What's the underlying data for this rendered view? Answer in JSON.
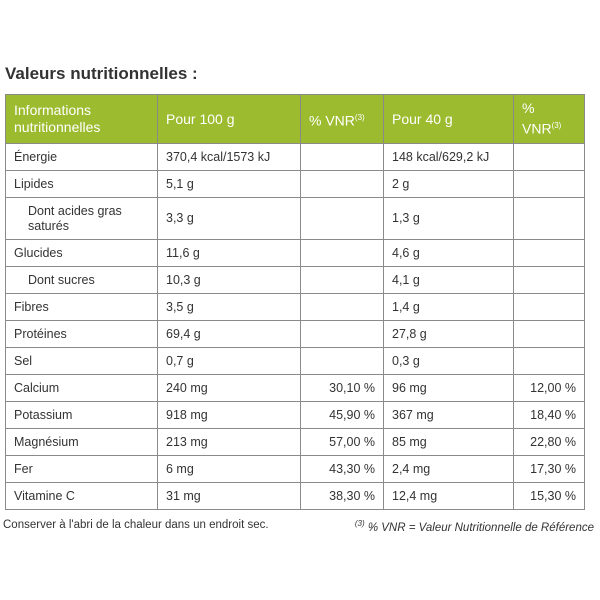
{
  "title": "Valeurs nutritionnelles :",
  "table": {
    "header": [
      {
        "text": "Informations nutritionnelles"
      },
      {
        "text": "Pour 100 g"
      },
      {
        "text": "% VNR",
        "sup": "(3)"
      },
      {
        "text": "Pour 40 g"
      },
      {
        "text": "% VNR",
        "sup": "(3)"
      }
    ],
    "rows": [
      {
        "label": "Énergie",
        "cells": [
          "370,4 kcal/1573 kJ",
          null,
          "148 kcal/629,2 kJ",
          null
        ]
      },
      {
        "label": "Lipides",
        "cells": [
          "5,1 g",
          null,
          "2 g",
          null
        ]
      },
      {
        "label": "Dont acides gras saturés",
        "indent": true,
        "cells": [
          "3,3 g",
          null,
          "1,3 g",
          null
        ]
      },
      {
        "label": "Glucides",
        "cells": [
          "11,6 g",
          null,
          "4,6 g",
          null
        ]
      },
      {
        "label": "Dont sucres",
        "indent": true,
        "cells": [
          "10,3 g",
          null,
          "4,1 g",
          null
        ]
      },
      {
        "label": "Fibres",
        "cells": [
          "3,5 g",
          null,
          "1,4 g",
          null
        ]
      },
      {
        "label": "Protéines",
        "cells": [
          "69,4 g",
          null,
          "27,8 g",
          null
        ]
      },
      {
        "label": "Sel",
        "cells": [
          "0,7 g",
          null,
          "0,3 g",
          null
        ]
      },
      {
        "label": "Calcium",
        "cells": [
          "240 mg",
          "30,10 %",
          "96 mg",
          "12,00 %"
        ]
      },
      {
        "label": "Potassium",
        "cells": [
          "918 mg",
          "45,90 %",
          "367 mg",
          "18,40 %"
        ]
      },
      {
        "label": "Magnésium",
        "cells": [
          "213 mg",
          "57,00 %",
          "85 mg",
          "22,80 %"
        ]
      },
      {
        "label": "Fer",
        "cells": [
          "6 mg",
          "43,30 %",
          "2,4 mg",
          "17,30 %"
        ]
      },
      {
        "label": "Vitamine C",
        "cells": [
          "31 mg",
          "38,30 %",
          "12,4 mg",
          "15,30 %"
        ]
      }
    ]
  },
  "footer": {
    "note": "Conserver à l'abri de la chaleur dans un endroit sec.",
    "footnote": {
      "sup": "(3)",
      "text": "% VNR = Valeur Nutritionnelle de Référence"
    }
  }
}
